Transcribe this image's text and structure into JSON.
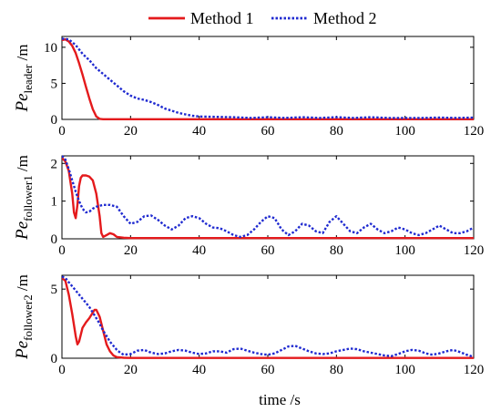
{
  "chart_data": {
    "type": "line",
    "legend": {
      "position": "top",
      "entries": [
        {
          "label": "Method 1",
          "color": "#e41a1c",
          "style": "solid"
        },
        {
          "label": "Method 2",
          "color": "#1f2ad0",
          "style": "dotted"
        }
      ]
    },
    "xlabel": "time /s",
    "xlim": [
      0,
      120
    ],
    "xticks": [
      0,
      20,
      40,
      60,
      80,
      100,
      120
    ],
    "subplots": [
      {
        "ylabel": {
          "main": "Pe",
          "sub": "leader",
          "unit": " /m"
        },
        "ylim": [
          0,
          11.5
        ],
        "yticks": [
          0,
          5,
          10
        ],
        "series": [
          {
            "name": "Method 1",
            "color": "#e41a1c",
            "style": "solid",
            "x": [
              0,
              1,
              2,
              3,
              4,
              5,
              6,
              7,
              8,
              9,
              10,
              11,
              12,
              14,
              20,
              40,
              60,
              80,
              100,
              120
            ],
            "y": [
              11,
              11.1,
              10.8,
              10.2,
              9.2,
              7.8,
              6.2,
              4.5,
              2.9,
              1.4,
              0.4,
              0.08,
              0.03,
              0.02,
              0.02,
              0.02,
              0.02,
              0.02,
              0.02,
              0.02
            ]
          },
          {
            "name": "Method 2",
            "color": "#1f2ad0",
            "style": "dotted",
            "x": [
              0,
              2,
              4,
              6,
              8,
              10,
              12,
              14,
              16,
              18,
              20,
              22,
              24,
              26,
              28,
              30,
              32,
              34,
              36,
              38,
              40,
              42,
              45,
              50,
              55,
              60,
              65,
              70,
              75,
              80,
              85,
              90,
              95,
              100,
              105,
              110,
              115,
              120
            ],
            "y": [
              11.2,
              11.1,
              10.3,
              9.1,
              8.2,
              7.1,
              6.3,
              5.5,
              4.7,
              3.9,
              3.3,
              2.9,
              2.7,
              2.4,
              2.0,
              1.5,
              1.2,
              0.9,
              0.7,
              0.5,
              0.4,
              0.38,
              0.35,
              0.3,
              0.2,
              0.3,
              0.2,
              0.3,
              0.2,
              0.3,
              0.2,
              0.3,
              0.2,
              0.2,
              0.2,
              0.25,
              0.2,
              0.25
            ]
          }
        ]
      },
      {
        "ylabel": {
          "main": "Pe",
          "sub": "follower1",
          "unit": " /m"
        },
        "ylim": [
          0,
          2.2
        ],
        "yticks": [
          0,
          1,
          2
        ],
        "series": [
          {
            "name": "Method 1",
            "color": "#e41a1c",
            "style": "solid",
            "x": [
              0,
              1,
              2,
              3,
              3.5,
              4,
              4.5,
              5,
              5.5,
              6,
              7,
              8,
              9,
              10,
              11,
              11.5,
              12,
              13,
              14,
              15,
              16,
              18,
              20,
              30,
              40,
              60,
              80,
              100,
              120
            ],
            "y": [
              2.15,
              2.05,
              1.8,
              1.2,
              0.7,
              0.55,
              0.9,
              1.4,
              1.62,
              1.68,
              1.68,
              1.65,
              1.55,
              1.2,
              0.6,
              0.15,
              0.05,
              0.1,
              0.15,
              0.12,
              0.05,
              0.03,
              0.02,
              0.02,
              0.02,
              0.02,
              0.02,
              0.02,
              0.02
            ]
          },
          {
            "name": "Method 2",
            "color": "#1f2ad0",
            "style": "dotted",
            "x": [
              0,
              1,
              2,
              3,
              4,
              5,
              6,
              7,
              8,
              9,
              10,
              12,
              14,
              16,
              18,
              20,
              22,
              24,
              26,
              28,
              30,
              32,
              34,
              36,
              38,
              40,
              42,
              44,
              46,
              48,
              50,
              52,
              54,
              56,
              58,
              60,
              62,
              64,
              66,
              68,
              70,
              72,
              74,
              76,
              78,
              80,
              82,
              84,
              86,
              88,
              90,
              92,
              94,
              96,
              98,
              100,
              102,
              104,
              106,
              108,
              110,
              112,
              114,
              116,
              118,
              120
            ],
            "y": [
              2.2,
              2.1,
              1.85,
              1.55,
              1.25,
              1.0,
              0.8,
              0.7,
              0.72,
              0.8,
              0.85,
              0.9,
              0.9,
              0.85,
              0.6,
              0.4,
              0.45,
              0.6,
              0.62,
              0.5,
              0.35,
              0.25,
              0.35,
              0.55,
              0.6,
              0.55,
              0.4,
              0.3,
              0.28,
              0.2,
              0.1,
              0.05,
              0.1,
              0.25,
              0.45,
              0.6,
              0.55,
              0.25,
              0.1,
              0.2,
              0.4,
              0.35,
              0.2,
              0.15,
              0.45,
              0.6,
              0.4,
              0.2,
              0.15,
              0.3,
              0.4,
              0.25,
              0.15,
              0.2,
              0.3,
              0.25,
              0.15,
              0.1,
              0.15,
              0.25,
              0.35,
              0.25,
              0.15,
              0.15,
              0.2,
              0.3
            ]
          }
        ]
      },
      {
        "ylabel": {
          "main": "Pe",
          "sub": "follower2",
          "unit": " /m"
        },
        "ylim": [
          0,
          6
        ],
        "yticks": [
          0,
          5
        ],
        "series": [
          {
            "name": "Method 1",
            "color": "#e41a1c",
            "style": "solid",
            "x": [
              0,
              1,
              2,
              3,
              4,
              4.5,
              5,
              5.5,
              6,
              7,
              8,
              9,
              9.5,
              10,
              11,
              12,
              13,
              14,
              15,
              16,
              18,
              20,
              30,
              40,
              60,
              80,
              100,
              120
            ],
            "y": [
              5.8,
              5.6,
              4.6,
              3.2,
              1.6,
              1.0,
              1.2,
              1.7,
              2.2,
              2.6,
              2.9,
              3.3,
              3.5,
              3.5,
              3.0,
              2.0,
              1.0,
              0.5,
              0.2,
              0.08,
              0.03,
              0.02,
              0.02,
              0.02,
              0.02,
              0.02,
              0.02,
              0.02
            ]
          },
          {
            "name": "Method 2",
            "color": "#1f2ad0",
            "style": "dotted",
            "x": [
              0,
              1,
              2,
              3,
              4,
              5,
              6,
              7,
              8,
              9,
              10,
              11,
              12,
              13,
              14,
              15,
              16,
              17,
              18,
              20,
              22,
              24,
              26,
              28,
              30,
              32,
              34,
              36,
              38,
              40,
              42,
              44,
              46,
              48,
              50,
              52,
              54,
              56,
              58,
              60,
              62,
              64,
              66,
              68,
              70,
              72,
              74,
              76,
              78,
              80,
              82,
              84,
              86,
              88,
              90,
              92,
              94,
              96,
              98,
              100,
              102,
              104,
              106,
              108,
              110,
              112,
              114,
              116,
              118,
              120
            ],
            "y": [
              5.9,
              5.8,
              5.5,
              5.2,
              4.9,
              4.6,
              4.3,
              4.0,
              3.7,
              3.3,
              2.9,
              2.5,
              2.0,
              1.6,
              1.2,
              0.9,
              0.6,
              0.4,
              0.25,
              0.3,
              0.55,
              0.6,
              0.4,
              0.3,
              0.35,
              0.5,
              0.6,
              0.55,
              0.4,
              0.3,
              0.35,
              0.5,
              0.5,
              0.4,
              0.65,
              0.7,
              0.55,
              0.4,
              0.3,
              0.25,
              0.35,
              0.6,
              0.85,
              0.9,
              0.7,
              0.5,
              0.35,
              0.3,
              0.35,
              0.5,
              0.6,
              0.7,
              0.65,
              0.5,
              0.4,
              0.3,
              0.2,
              0.15,
              0.3,
              0.5,
              0.6,
              0.55,
              0.35,
              0.25,
              0.35,
              0.5,
              0.6,
              0.45,
              0.25,
              0.1
            ]
          }
        ]
      }
    ]
  }
}
